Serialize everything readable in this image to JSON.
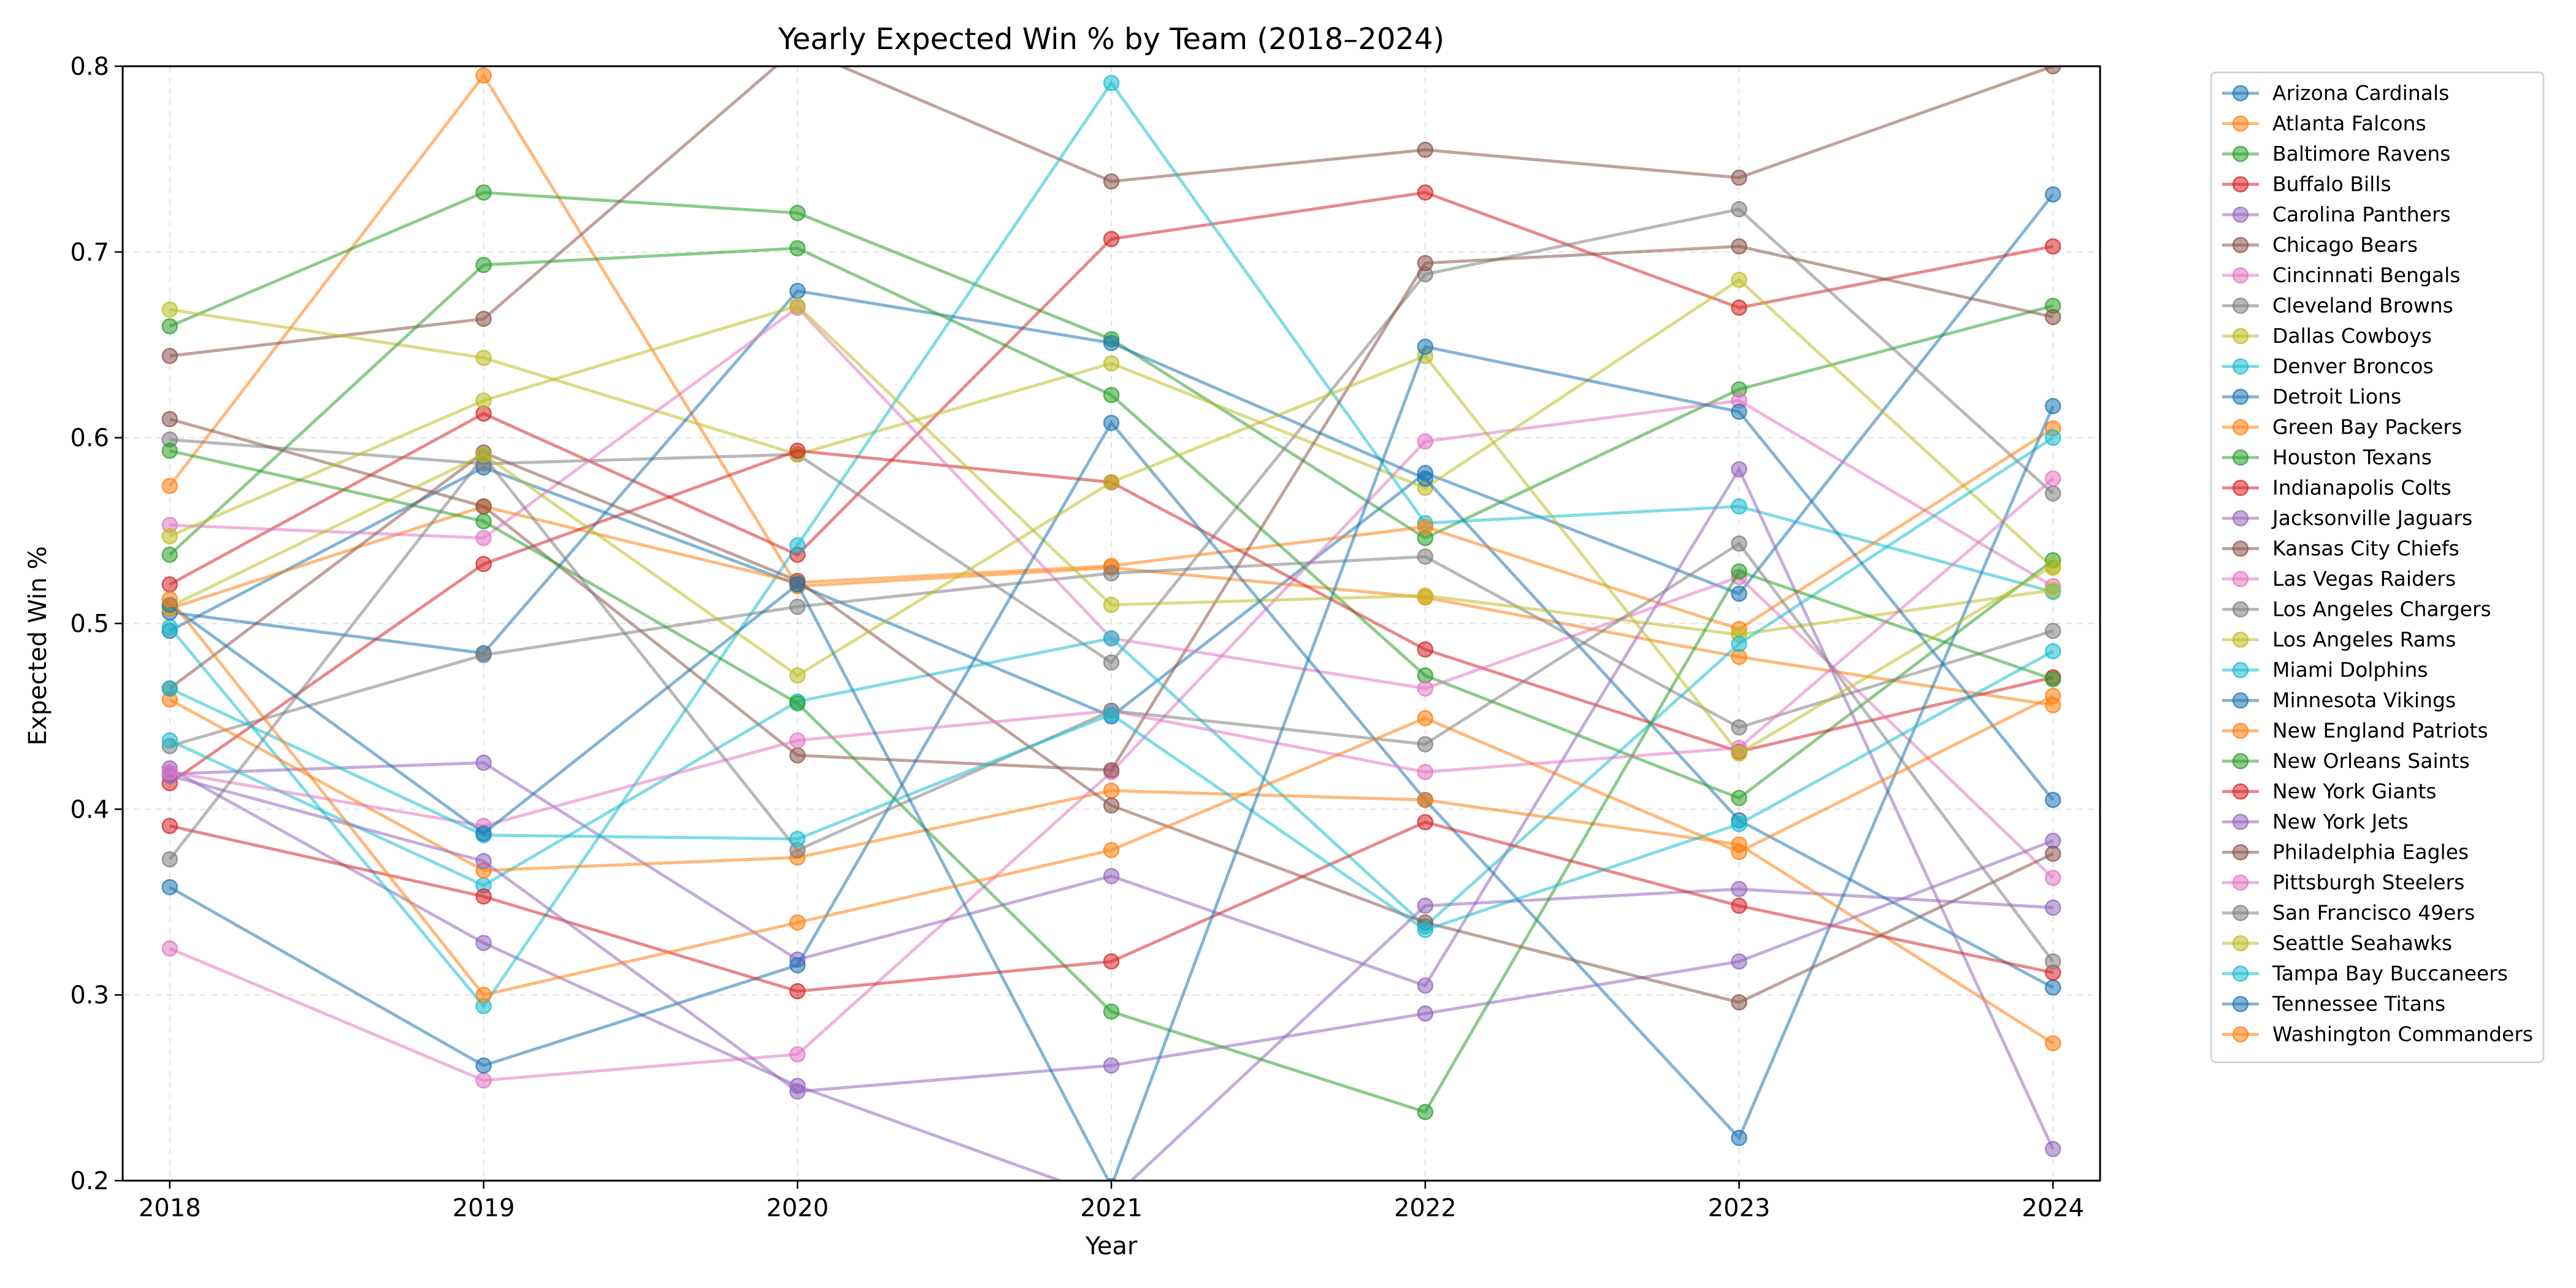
{
  "chart_data": {
    "type": "line",
    "title": "Yearly Expected Win % by Team (2018–2024)",
    "xlabel": "Year",
    "ylabel": "Expected Win %",
    "x": [
      2018,
      2019,
      2020,
      2021,
      2022,
      2023,
      2024
    ],
    "ylim": [
      0.2,
      0.8
    ],
    "yticks": [
      0.2,
      0.3,
      0.4,
      0.5,
      0.6,
      0.7,
      0.8
    ],
    "yticks_labels": [
      "0.2",
      "0.3",
      "0.4",
      "0.5",
      "0.6",
      "0.7",
      "0.8"
    ],
    "grid": true,
    "legend_position": "outside-right",
    "palette": [
      "#1f77b4",
      "#ff7f0e",
      "#2ca02c",
      "#d62728",
      "#9467bd",
      "#8c564b",
      "#e377c2",
      "#7f7f7f",
      "#bcbd22",
      "#17becf"
    ],
    "series": [
      {
        "name": "Arizona Cardinals",
        "values": [
          0.496,
          0.584,
          0.521,
          0.45,
          0.581,
          0.516,
          0.731
        ]
      },
      {
        "name": "Atlanta Falcons",
        "values": [
          0.574,
          0.795,
          0.52,
          0.53,
          0.514,
          0.482,
          0.456
        ]
      },
      {
        "name": "Baltimore Ravens",
        "values": [
          0.66,
          0.732,
          0.721,
          0.653,
          0.546,
          0.626,
          0.671
        ]
      },
      {
        "name": "Buffalo Bills",
        "values": [
          0.521,
          0.613,
          0.537,
          0.707,
          0.732,
          0.67,
          0.703
        ]
      },
      {
        "name": "Carolina Panthers",
        "values": [
          0.422,
          0.328,
          0.251,
          0.19,
          0.348,
          0.357,
          0.347
        ]
      },
      {
        "name": "Chicago Bears",
        "values": [
          0.644,
          0.664,
          0.81,
          0.738,
          0.755,
          0.74,
          0.8
        ]
      },
      {
        "name": "Cincinnati Bengals",
        "values": [
          0.325,
          0.254,
          0.268,
          0.42,
          0.598,
          0.62,
          0.52
        ]
      },
      {
        "name": "Cleveland Browns",
        "values": [
          0.599,
          0.586,
          0.591,
          0.479,
          0.688,
          0.723,
          0.57
        ]
      },
      {
        "name": "Dallas Cowboys",
        "values": [
          0.669,
          0.643,
          0.591,
          0.64,
          0.573,
          0.685,
          0.53
        ]
      },
      {
        "name": "Denver Broncos",
        "values": [
          0.498,
          0.294,
          0.542,
          0.791,
          0.554,
          0.563,
          0.517
        ]
      },
      {
        "name": "Detroit Lions",
        "values": [
          0.506,
          0.484,
          0.679,
          0.651,
          0.578,
          0.394,
          0.304
        ]
      },
      {
        "name": "Green Bay Packers",
        "values": [
          0.508,
          0.563,
          0.522,
          0.531,
          0.552,
          0.497,
          0.605
        ]
      },
      {
        "name": "Houston Texans",
        "values": [
          0.537,
          0.693,
          0.702,
          0.623,
          0.472,
          0.406,
          0.534
        ]
      },
      {
        "name": "Indianapolis Colts",
        "values": [
          0.414,
          0.532,
          0.593,
          0.576,
          0.486,
          0.431,
          0.471
        ]
      },
      {
        "name": "Jacksonville Jaguars",
        "values": [
          0.419,
          0.425,
          0.319,
          0.364,
          0.305,
          0.583,
          0.217
        ]
      },
      {
        "name": "Kansas City Chiefs",
        "values": [
          0.61,
          0.563,
          0.429,
          0.421,
          0.694,
          0.703,
          0.665
        ]
      },
      {
        "name": "Las Vegas Raiders",
        "values": [
          0.553,
          0.546,
          0.67,
          0.492,
          0.465,
          0.525,
          0.363
        ]
      },
      {
        "name": "Los Angeles Chargers",
        "values": [
          0.434,
          0.483,
          0.509,
          0.527,
          0.536,
          0.444,
          0.496
        ]
      },
      {
        "name": "Los Angeles Rams",
        "values": [
          0.547,
          0.62,
          0.671,
          0.51,
          0.515,
          0.494,
          0.518
        ]
      },
      {
        "name": "Miami Dolphins",
        "values": [
          0.437,
          0.359,
          0.458,
          0.492,
          0.337,
          0.489,
          0.6
        ]
      },
      {
        "name": "Minnesota Vikings",
        "values": [
          0.358,
          0.262,
          0.316,
          0.608,
          0.405,
          0.223,
          0.617
        ]
      },
      {
        "name": "New England Patriots",
        "values": [
          0.459,
          0.367,
          0.374,
          0.41,
          0.405,
          0.381,
          0.274
        ]
      },
      {
        "name": "New Orleans Saints",
        "values": [
          0.593,
          0.555,
          0.457,
          0.291,
          0.237,
          0.528,
          0.47
        ]
      },
      {
        "name": "New York Giants",
        "values": [
          0.391,
          0.353,
          0.302,
          0.318,
          0.393,
          0.348,
          0.312
        ]
      },
      {
        "name": "New York Jets",
        "values": [
          0.418,
          0.372,
          0.248,
          0.262,
          0.29,
          0.318,
          0.383
        ]
      },
      {
        "name": "Philadelphia Eagles",
        "values": [
          0.465,
          0.592,
          0.523,
          0.402,
          0.339,
          0.296,
          0.376
        ]
      },
      {
        "name": "Pittsburgh Steelers",
        "values": [
          0.42,
          0.391,
          0.437,
          0.453,
          0.42,
          0.433,
          0.578
        ]
      },
      {
        "name": "San Francisco 49ers",
        "values": [
          0.373,
          0.59,
          0.378,
          0.453,
          0.435,
          0.543,
          0.318
        ]
      },
      {
        "name": "Seattle Seahawks",
        "values": [
          0.509,
          0.591,
          0.472,
          0.576,
          0.644,
          0.43,
          0.531
        ]
      },
      {
        "name": "Tampa Bay Buccaneers",
        "values": [
          0.465,
          0.386,
          0.384,
          0.451,
          0.335,
          0.392,
          0.485
        ]
      },
      {
        "name": "Tennessee Titans",
        "values": [
          0.51,
          0.387,
          0.521,
          0.197,
          0.649,
          0.614,
          0.405
        ]
      },
      {
        "name": "Washington Commanders",
        "values": [
          0.513,
          0.3,
          0.339,
          0.378,
          0.449,
          0.377,
          0.461
        ]
      }
    ]
  }
}
